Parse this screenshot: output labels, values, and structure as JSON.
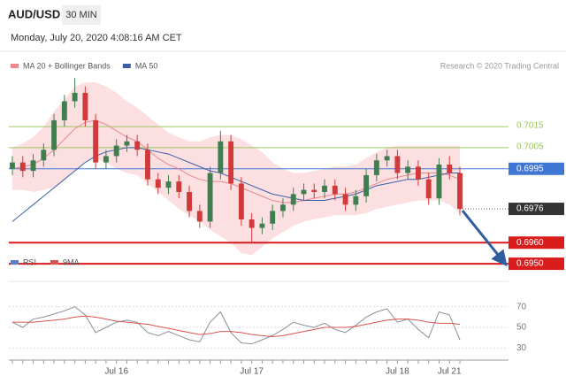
{
  "header": {
    "symbol": "AUD/USD",
    "interval": "30 MIN",
    "timestamp": "Monday, July 20, 2020 4:08:16 AM CET"
  },
  "chart_data": [
    {
      "type": "candlestick",
      "copyright": "Research © 2020 Trading Central",
      "up_color": "#3f7f4f",
      "down_color": "#d03a3a",
      "ylim": [
        0.6945,
        0.7049
      ],
      "open": [
        0.6995,
        0.6998,
        0.6994,
        0.6999,
        0.7004,
        0.7018,
        0.7027,
        0.7031,
        0.7018,
        0.6998,
        0.7001,
        0.7006,
        0.7008,
        0.7004,
        0.699,
        0.6986,
        0.6989,
        0.6984,
        0.6975,
        0.697,
        0.6993,
        0.7008,
        0.6988,
        0.6971,
        0.6967,
        0.6969,
        0.6975,
        0.6978,
        0.6983,
        0.6985,
        0.6984,
        0.6987,
        0.6983,
        0.6978,
        0.6982,
        0.6992,
        0.6999,
        0.7001,
        0.6993,
        0.6996,
        0.699,
        0.6981,
        0.6997,
        0.6993
      ],
      "high": [
        0.7001,
        0.7001,
        0.7002,
        0.7007,
        0.7021,
        0.703,
        0.7038,
        0.7034,
        0.7021,
        0.7004,
        0.7009,
        0.7011,
        0.7011,
        0.7007,
        0.6993,
        0.6992,
        0.6992,
        0.6987,
        0.6978,
        0.6996,
        0.7013,
        0.7011,
        0.6991,
        0.6974,
        0.6972,
        0.6978,
        0.6981,
        0.6986,
        0.6988,
        0.6988,
        0.699,
        0.699,
        0.6986,
        0.6985,
        0.6995,
        0.7002,
        0.7004,
        0.7004,
        0.6999,
        0.6999,
        0.6993,
        0.7,
        0.7001,
        0.6996
      ],
      "low": [
        0.6992,
        0.6991,
        0.6991,
        0.6996,
        0.7001,
        0.7015,
        0.7024,
        0.7015,
        0.6995,
        0.6995,
        0.6998,
        0.7003,
        0.7001,
        0.6987,
        0.6983,
        0.6983,
        0.6981,
        0.6972,
        0.6967,
        0.6967,
        0.699,
        0.6985,
        0.6968,
        0.696,
        0.6964,
        0.6966,
        0.6972,
        0.6975,
        0.698,
        0.6981,
        0.6981,
        0.698,
        0.6975,
        0.6975,
        0.6979,
        0.6989,
        0.6996,
        0.699,
        0.699,
        0.6987,
        0.6978,
        0.6978,
        0.699,
        0.6973
      ],
      "close": [
        0.6998,
        0.6994,
        0.6999,
        0.7004,
        0.7018,
        0.7027,
        0.7031,
        0.7018,
        0.6998,
        0.7001,
        0.7006,
        0.7008,
        0.7004,
        0.699,
        0.6986,
        0.6989,
        0.6984,
        0.6975,
        0.697,
        0.6993,
        0.7008,
        0.6988,
        0.6971,
        0.6967,
        0.6969,
        0.6975,
        0.6978,
        0.6983,
        0.6985,
        0.6984,
        0.6987,
        0.6983,
        0.6978,
        0.6982,
        0.6992,
        0.6999,
        0.7001,
        0.6993,
        0.6996,
        0.699,
        0.6981,
        0.6997,
        0.6993,
        0.6976
      ],
      "overlays": [
        {
          "name": "MA 20 + Bollinger Bands",
          "color": "#e8888f",
          "band_color": "#fbd9da",
          "values": [
            0.6995,
            0.6996,
            0.6997,
            0.7,
            0.7004,
            0.7009,
            0.7014,
            0.7017,
            0.7018,
            0.7016,
            0.7013,
            0.701,
            0.7008,
            0.7004,
            0.7,
            0.6997,
            0.6995,
            0.6992,
            0.699,
            0.6989,
            0.6989,
            0.6988,
            0.6986,
            0.6984,
            0.6982,
            0.698,
            0.6979,
            0.6979,
            0.698,
            0.6981,
            0.6982,
            0.6983,
            0.6983,
            0.6984,
            0.6986,
            0.6988,
            0.699,
            0.6991,
            0.6992,
            0.6993,
            0.6993,
            0.6993,
            0.6992,
            0.699
          ],
          "upper": [
            0.7005,
            0.7007,
            0.701,
            0.7015,
            0.7022,
            0.7028,
            0.7034,
            0.7036,
            0.7036,
            0.7034,
            0.7031,
            0.7027,
            0.7024,
            0.702,
            0.7016,
            0.7012,
            0.701,
            0.7008,
            0.7008,
            0.701,
            0.7011,
            0.7011,
            0.7009,
            0.7006,
            0.7003,
            0.6998,
            0.6995,
            0.6993,
            0.6993,
            0.6994,
            0.6995,
            0.6996,
            0.6996,
            0.6997,
            0.7,
            0.7003,
            0.7005,
            0.7006,
            0.7006,
            0.7006,
            0.7006,
            0.7006,
            0.7006,
            0.7006
          ],
          "lower": [
            0.6985,
            0.6985,
            0.6984,
            0.6985,
            0.6986,
            0.699,
            0.6994,
            0.6998,
            0.7,
            0.6998,
            0.6995,
            0.6993,
            0.6992,
            0.6988,
            0.6984,
            0.698,
            0.6976,
            0.6973,
            0.697,
            0.6966,
            0.6963,
            0.696,
            0.6955,
            0.6954,
            0.6958,
            0.6962,
            0.6965,
            0.6968,
            0.697,
            0.6971,
            0.6972,
            0.6973,
            0.6973,
            0.6973,
            0.6974,
            0.6976,
            0.6977,
            0.6978,
            0.6979,
            0.698,
            0.698,
            0.698,
            0.6978,
            0.6974
          ]
        },
        {
          "name": "MA 50",
          "color": "#3b5ea8",
          "values": [
            0.697,
            0.6974,
            0.6978,
            0.6982,
            0.6986,
            0.699,
            0.6994,
            0.6998,
            0.7001,
            0.7003,
            0.7004,
            0.7005,
            0.7005,
            0.7004,
            0.7003,
            0.7002,
            0.7,
            0.6998,
            0.6996,
            0.6994,
            0.6993,
            0.6991,
            0.6989,
            0.6987,
            0.6985,
            0.6983,
            0.6982,
            0.6981,
            0.698,
            0.698,
            0.698,
            0.6981,
            0.6982,
            0.6983,
            0.6985,
            0.6987,
            0.6988,
            0.6989,
            0.699,
            0.699,
            0.6991,
            0.6992,
            0.6993,
            0.6993
          ]
        }
      ],
      "levels": [
        {
          "value": 0.7015,
          "label": "0.7015",
          "color": "#9cc760",
          "style": "text"
        },
        {
          "value": 0.7005,
          "label": "0.7005",
          "color": "#9cc760",
          "style": "text"
        },
        {
          "value": 0.6995,
          "label": "0.6995",
          "color": "#3f78d4",
          "style": "box"
        },
        {
          "value": 0.6976,
          "label": "0.6976",
          "color": "#333333",
          "style": "last"
        },
        {
          "value": 0.696,
          "label": "0.6960",
          "color": "#d91c1c",
          "style": "box"
        },
        {
          "value": 0.695,
          "label": "0.6950",
          "color": "#d91c1c",
          "style": "box"
        }
      ]
    },
    {
      "type": "line",
      "categories": [
        null,
        null,
        null,
        null,
        null,
        null,
        null,
        null,
        null,
        null,
        "Jul 16",
        null,
        null,
        null,
        null,
        null,
        null,
        null,
        null,
        null,
        null,
        null,
        null,
        "Jul 17",
        null,
        null,
        null,
        null,
        null,
        null,
        null,
        null,
        null,
        null,
        null,
        null,
        null,
        "Jul 18",
        null,
        null,
        null,
        null,
        "Jul 21",
        null
      ],
      "ylim": [
        20,
        86
      ],
      "yticks": [
        30,
        50,
        70
      ],
      "series": [
        {
          "name": "RSI",
          "color": "#8a8f99",
          "legend_color": "#5b7fc0",
          "values": [
            55,
            50,
            58,
            60,
            63,
            66,
            70,
            62,
            45,
            50,
            55,
            57,
            55,
            45,
            42,
            46,
            42,
            38,
            36,
            55,
            65,
            45,
            35,
            34,
            38,
            42,
            48,
            55,
            52,
            50,
            54,
            48,
            45,
            52,
            60,
            65,
            68,
            55,
            58,
            48,
            40,
            65,
            62,
            38
          ]
        },
        {
          "name": "9MA",
          "color": "#d9534f",
          "values": [
            55,
            55,
            55,
            56,
            57,
            58,
            60,
            61,
            60,
            58,
            56,
            55,
            54,
            53,
            51,
            49,
            47,
            45,
            43,
            44,
            46,
            46,
            45,
            43,
            42,
            41,
            42,
            44,
            46,
            48,
            50,
            50,
            50,
            51,
            53,
            55,
            57,
            58,
            58,
            57,
            55,
            54,
            54,
            53
          ]
        }
      ]
    }
  ]
}
